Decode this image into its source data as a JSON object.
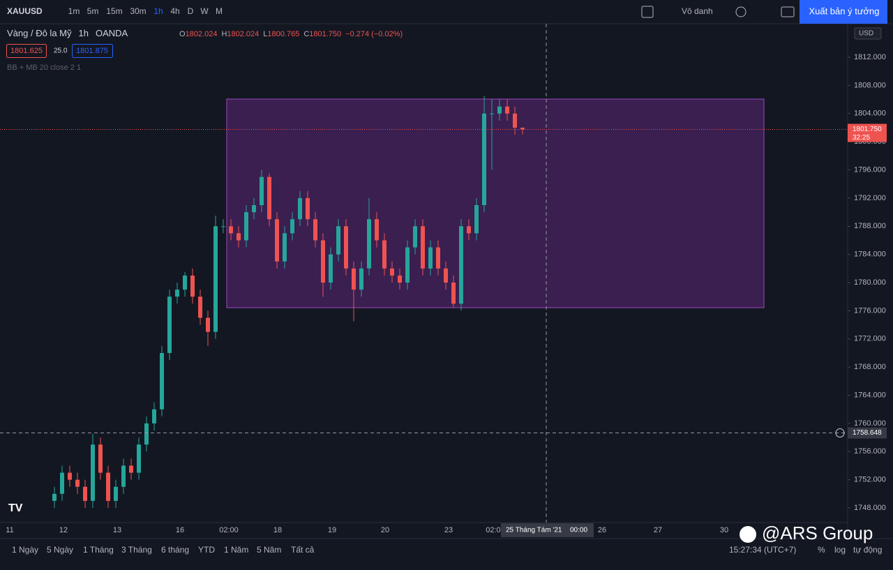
{
  "toolbar": {
    "symbol": "XAUUSD",
    "intervals": [
      "1m",
      "5m",
      "15m",
      "30m",
      "1h",
      "4h",
      "D",
      "W",
      "M"
    ],
    "layout_name": "Vô danh",
    "publish": "Xuất bản ý tưởng"
  },
  "legend": {
    "title": "Vàng / Đô la Mỹ",
    "interval": "1h",
    "source": "OANDA",
    "open_label": "O",
    "open": "1802.024",
    "high_label": "H",
    "high": "1802.024",
    "low_label": "L",
    "low": "1800.765",
    "close_label": "C",
    "close": "1801.750",
    "change": "−0.274 (−0.02%)",
    "bid": "1801.625",
    "spread": "25.0",
    "ask": "1801.875",
    "indicator": "BB + MB 20 close 2 1"
  },
  "chart_data": {
    "type": "candlestick",
    "open": [
      1749,
      1750,
      1753,
      1752,
      1751,
      1749,
      1757,
      1753,
      1749,
      1751,
      1754,
      1753,
      1757,
      1760,
      1762,
      1770,
      1778,
      1779,
      1781,
      1778,
      1775,
      1773,
      1788,
      1788,
      1787,
      1786,
      1790,
      1791,
      1795,
      1789,
      1783,
      1787,
      1789,
      1792,
      1789,
      1786,
      1780,
      1784,
      1788,
      1782,
      1779,
      1782,
      1789,
      1786,
      1782,
      1781,
      1780,
      1785,
      1788,
      1782,
      1785,
      1782,
      1780,
      1777,
      1788,
      1787,
      1791,
      1804,
      1804,
      1805,
      1804,
      1802
    ],
    "high": [
      1751,
      1754,
      1754,
      1753,
      1752,
      1758.5,
      1758,
      1754,
      1752,
      1755,
      1755,
      1758,
      1761,
      1763,
      1771,
      1779,
      1780,
      1781.5,
      1782,
      1779,
      1776,
      1789.5,
      1789,
      1789,
      1788,
      1791,
      1792,
      1796,
      1795.5,
      1790,
      1788,
      1790,
      1793,
      1793,
      1790,
      1787,
      1785,
      1789,
      1789,
      1783,
      1783,
      1792,
      1790,
      1787,
      1783,
      1782,
      1786,
      1789,
      1789,
      1786,
      1786,
      1783,
      1781,
      1789,
      1789,
      1792,
      1806.5,
      1806,
      1806,
      1806,
      1805,
      1802
    ],
    "low": [
      1748,
      1749,
      1751,
      1750,
      1748,
      1748,
      1752,
      1748,
      1748,
      1750,
      1752,
      1752,
      1756,
      1759,
      1761,
      1769,
      1777,
      1778,
      1777,
      1774,
      1771,
      1772,
      1787,
      1786,
      1785,
      1785,
      1789,
      1790,
      1788,
      1782,
      1782,
      1786,
      1788,
      1788,
      1785,
      1778,
      1779,
      1783,
      1781,
      1774.5,
      1778,
      1781,
      1785,
      1781,
      1780,
      1779,
      1779,
      1784,
      1781,
      1781,
      1781,
      1779,
      1776.5,
      1776,
      1786,
      1786,
      1790,
      1796,
      1803,
      1803,
      1801,
      1801
    ],
    "close": [
      1750,
      1753,
      1752,
      1751,
      1749,
      1757,
      1753,
      1749,
      1751,
      1754,
      1753,
      1757,
      1760,
      1762,
      1770,
      1778,
      1779,
      1781,
      1778,
      1775,
      1773,
      1788,
      1788,
      1787,
      1786,
      1790,
      1791,
      1795,
      1789,
      1783,
      1787,
      1789,
      1792,
      1789,
      1786,
      1780,
      1784,
      1788,
      1782,
      1779,
      1782,
      1789,
      1786,
      1782,
      1781,
      1780,
      1785,
      1788,
      1782,
      1785,
      1782,
      1780,
      1777,
      1788,
      1787,
      1791,
      1804,
      1804,
      1805,
      1804,
      1802,
      1801.75
    ],
    "up_color": "#26a69a",
    "down_color": "#ef5350",
    "ylim": [
      1746.02,
      1816.76
    ],
    "yticks": [
      {
        "value": 1748,
        "label": "1748.000"
      },
      {
        "value": 1752,
        "label": "1752.000"
      },
      {
        "value": 1756,
        "label": "1756.000"
      },
      {
        "value": 1760,
        "label": "1760.000"
      },
      {
        "value": 1764,
        "label": "1764.000"
      },
      {
        "value": 1768,
        "label": "1768.000"
      },
      {
        "value": 1772,
        "label": "1772.000"
      },
      {
        "value": 1776,
        "label": "1776.000"
      },
      {
        "value": 1780,
        "label": "1780.000"
      },
      {
        "value": 1784,
        "label": "1784.000"
      },
      {
        "value": 1788,
        "label": "1788.000"
      },
      {
        "value": 1792,
        "label": "1792.000"
      },
      {
        "value": 1796,
        "label": "1796.000"
      },
      {
        "value": 1800,
        "label": "1800.000"
      },
      {
        "value": 1804,
        "label": "1804.000"
      },
      {
        "value": 1808,
        "label": "1808.000"
      },
      {
        "value": 1812,
        "label": "1812.000"
      }
    ],
    "currency": "USD",
    "last_price": {
      "value": 1801.75,
      "label": "1801.750"
    },
    "countdown": "32:25",
    "crosshair_price": {
      "value": 1758.648,
      "label": "1758.648"
    },
    "crosshair_time": "25 Tháng Tám '21",
    "crosshair_hour": "00:00"
  },
  "time_axis": [
    "11",
    "12",
    "13",
    "16",
    "02:00",
    "18",
    "19",
    "20",
    "23",
    "02:00",
    "26",
    "27",
    "30"
  ],
  "bottom_bar": {
    "ranges": [
      "1 Ngày",
      "5 Ngày",
      "1 Tháng",
      "3 Tháng",
      "6 tháng",
      "YTD",
      "1 Năm",
      "5 Năm",
      "Tất cả"
    ],
    "clock": "15:27:34 (UTC+7)",
    "percent": "%",
    "log": "log",
    "auto": "tự động"
  },
  "watermark": "@ARS Group"
}
